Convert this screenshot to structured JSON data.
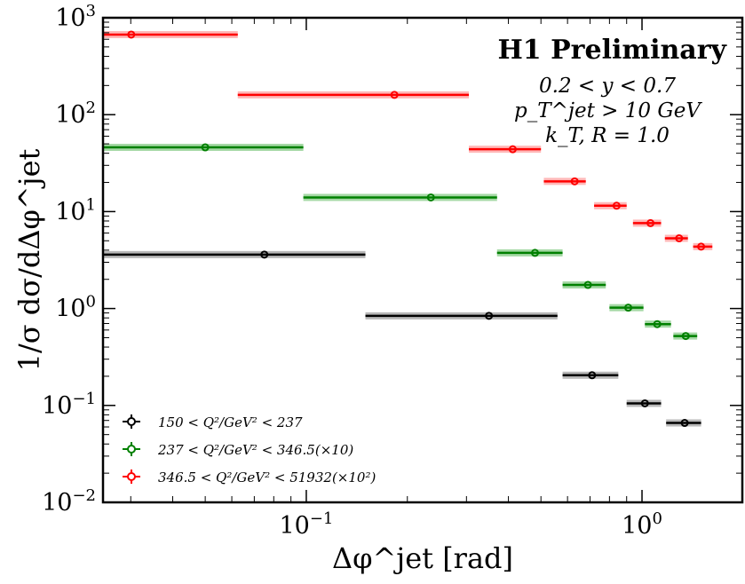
{
  "chart_data": {
    "type": "scatter",
    "title": "",
    "xlabel": "Δφ^jet [rad]",
    "ylabel": "1/σ dσ/dΔφ^jet",
    "xscale": "log",
    "yscale": "log",
    "xlim": [
      0.0248,
      1.99
    ],
    "ylim": [
      0.01,
      1000
    ],
    "grid": false,
    "x_ticks": [
      {
        "value": 0.1,
        "base": "10",
        "exp": "−1"
      },
      {
        "value": 1,
        "base": "10",
        "exp": "0"
      }
    ],
    "y_ticks": [
      {
        "value": 0.01,
        "base": "10",
        "exp": "−2"
      },
      {
        "value": 0.1,
        "base": "10",
        "exp": "−1"
      },
      {
        "value": 1,
        "base": "10",
        "exp": "0"
      },
      {
        "value": 10,
        "base": "10",
        "exp": "1"
      },
      {
        "value": 100,
        "base": "10",
        "exp": "2"
      },
      {
        "value": 1000,
        "base": "10",
        "exp": "3"
      }
    ],
    "annotations": {
      "title": "H1 Preliminary",
      "lines": [
        "0.2 < y < 0.7",
        "p_T^jet > 10 GeV",
        "k_T, R = 1.0"
      ]
    },
    "legend_position": "bottom-left",
    "series": [
      {
        "name": "150 < Q²/GeV² < 237",
        "color": "#000000",
        "band_color": "#9a9a9a",
        "points": [
          {
            "x": 0.075,
            "y": 3.6,
            "xlo": 0.0248,
            "xhi": 0.15
          },
          {
            "x": 0.35,
            "y": 0.84,
            "xlo": 0.15,
            "xhi": 0.56
          },
          {
            "x": 0.71,
            "y": 0.205,
            "xlo": 0.58,
            "xhi": 0.85
          },
          {
            "x": 1.02,
            "y": 0.105,
            "xlo": 0.9,
            "xhi": 1.14
          },
          {
            "x": 1.34,
            "y": 0.066,
            "xlo": 1.18,
            "xhi": 1.5
          }
        ]
      },
      {
        "name": "237 < Q²/GeV² < 346.5(×10)",
        "color": "#008000",
        "band_color": "#7fc87f",
        "points": [
          {
            "x": 0.05,
            "y": 46,
            "xlo": 0.0248,
            "xhi": 0.098
          },
          {
            "x": 0.235,
            "y": 14,
            "xlo": 0.098,
            "xhi": 0.37
          },
          {
            "x": 0.48,
            "y": 3.75,
            "xlo": 0.37,
            "xhi": 0.58
          },
          {
            "x": 0.69,
            "y": 1.75,
            "xlo": 0.58,
            "xhi": 0.78
          },
          {
            "x": 0.91,
            "y": 1.02,
            "xlo": 0.8,
            "xhi": 1.01
          },
          {
            "x": 1.11,
            "y": 0.69,
            "xlo": 1.02,
            "xhi": 1.22
          },
          {
            "x": 1.35,
            "y": 0.52,
            "xlo": 1.24,
            "xhi": 1.46
          }
        ]
      },
      {
        "name": "346.5 < Q²/GeV² < 51932(×10²)",
        "color": "#ff0000",
        "band_color": "#ff9a9a",
        "points": [
          {
            "x": 0.0301,
            "y": 670,
            "xlo": 0.0248,
            "xhi": 0.0625
          },
          {
            "x": 0.183,
            "y": 160,
            "xlo": 0.0625,
            "xhi": 0.305
          },
          {
            "x": 0.412,
            "y": 44,
            "xlo": 0.305,
            "xhi": 0.5
          },
          {
            "x": 0.63,
            "y": 20.5,
            "xlo": 0.51,
            "xhi": 0.68
          },
          {
            "x": 0.84,
            "y": 11.5,
            "xlo": 0.72,
            "xhi": 0.9
          },
          {
            "x": 1.06,
            "y": 7.6,
            "xlo": 0.94,
            "xhi": 1.14
          },
          {
            "x": 1.29,
            "y": 5.3,
            "xlo": 1.17,
            "xhi": 1.37
          },
          {
            "x": 1.5,
            "y": 4.35,
            "xlo": 1.42,
            "xhi": 1.62
          }
        ]
      }
    ]
  }
}
